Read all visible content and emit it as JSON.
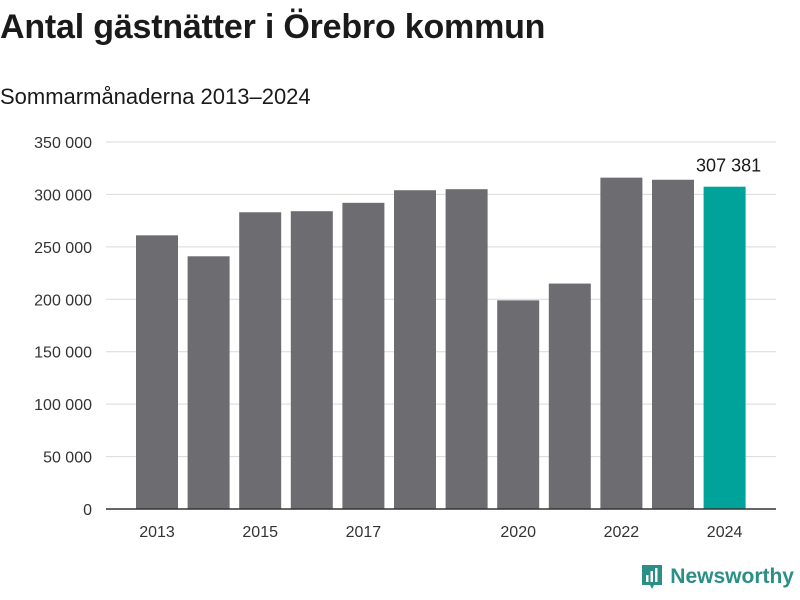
{
  "title": "Antal gästnätter i Örebro kommun",
  "subtitle": "Sommarmånaderna 2013–2024",
  "brand": {
    "name": "Newsworthy",
    "color": "#2a8f86"
  },
  "colors": {
    "bar": "#6d6c71",
    "highlight": "#00a39a",
    "grid": "#d9d9d9",
    "axis": "#333333"
  },
  "chart_data": {
    "type": "bar",
    "title": "Antal gästnätter i Örebro kommun",
    "subtitle": "Sommarmånaderna 2013–2024",
    "categories": [
      "2013",
      "2014",
      "2015",
      "2016",
      "2017",
      "2018",
      "2019",
      "2020",
      "2021",
      "2022",
      "2023",
      "2024"
    ],
    "values": [
      261000,
      241000,
      283000,
      284000,
      292000,
      304000,
      305000,
      199000,
      215000,
      316000,
      314000,
      307381
    ],
    "highlight_index": 11,
    "data_label": "307 381",
    "x_tick_labels": [
      "2013",
      "2015",
      "2017",
      "2020",
      "2022",
      "2024"
    ],
    "y_ticks": [
      0,
      50000,
      100000,
      150000,
      200000,
      250000,
      300000,
      350000
    ],
    "y_tick_labels": [
      "0",
      "50 000",
      "100 000",
      "150 000",
      "200 000",
      "250 000",
      "300 000",
      "350 000"
    ],
    "ylim": [
      0,
      350000
    ],
    "grid": true,
    "legend": false
  }
}
